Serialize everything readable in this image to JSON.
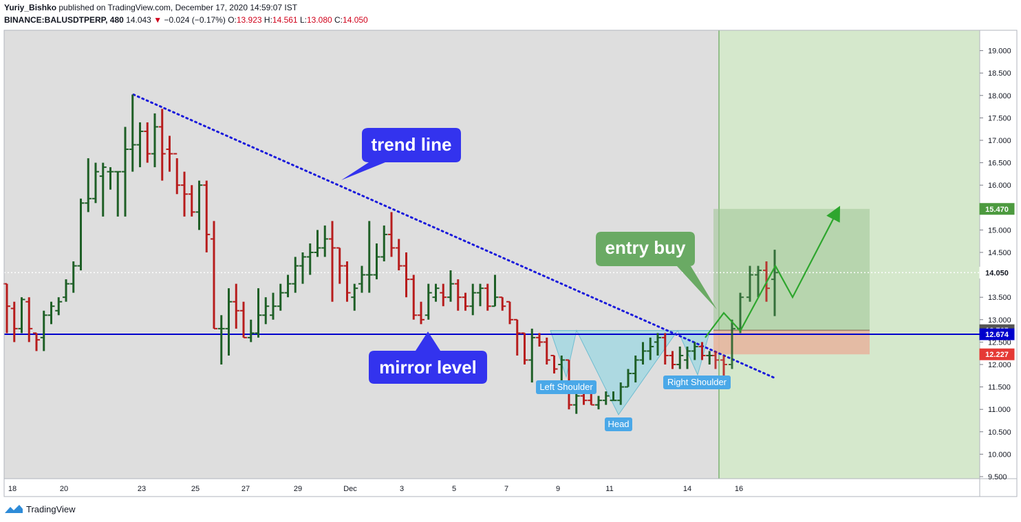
{
  "header": {
    "author": "Yuriy_Bishko",
    "published_text": "published on TradingView.com, December 17, 2020 14:59:07 IST",
    "symbol": "BINANCE:BALUSDTPERP, 480",
    "last": "14.043",
    "change_arrow": "▼",
    "change": "−0.024 (−0.17%)",
    "o_label": "O:",
    "o": "13.923",
    "h_label": "H:",
    "h": "14.561",
    "l_label": "L:",
    "l": "13.080",
    "c_label": "C:",
    "c": "14.050"
  },
  "footer": {
    "brand": "TradingView",
    "logo_icon": "tradingview-logo-icon"
  },
  "annotations": {
    "trend_line": "trend line",
    "entry_buy": "entry buy",
    "mirror_level": "mirror level",
    "left_shoulder": "Left Shoulder",
    "head": "Head",
    "right_shoulder": "Right Shoulder"
  },
  "colors": {
    "up": "#1e5f26",
    "down": "#b71c1c",
    "callout_blue": "#3333ee",
    "callout_green": "#6aaa64",
    "pattern_fill": "#a5d8e2",
    "mirror_line": "#0000cc",
    "trend_line": "#1a1adb",
    "target_zone": "#b7d4a8",
    "stop_zone": "#e6b6a0",
    "future_bg": "#d5e8cc",
    "chart_bg": "#dedede"
  },
  "chart_data": {
    "type": "ohlc-bar",
    "interval": "480",
    "ylim": [
      9.3,
      19.3
    ],
    "yticks": [
      "19.000",
      "18.500",
      "18.000",
      "17.500",
      "17.000",
      "16.500",
      "16.000",
      "15.500",
      "15.000",
      "14.500",
      "14.000",
      "13.500",
      "13.000",
      "12.500",
      "12.000",
      "11.500",
      "11.000",
      "10.500",
      "10.000",
      "9.500"
    ],
    "xtick_labels": [
      "18",
      "20",
      "23",
      "25",
      "27",
      "29",
      "Dec",
      "3",
      "5",
      "7",
      "9",
      "11",
      "14",
      "16"
    ],
    "price_labels": [
      {
        "value": 15.47,
        "text": "15.470",
        "color": "#4c9a3f"
      },
      {
        "value": 14.05,
        "text": "14.050",
        "color": "#ffffff"
      },
      {
        "value": 12.765,
        "text": "12.765",
        "color": "#555555"
      },
      {
        "value": 12.674,
        "text": "12.674",
        "color": "#0000cc"
      },
      {
        "value": 12.227,
        "text": "12.227",
        "color": "#e53935"
      }
    ],
    "mirror_level": 12.674,
    "current_price": 14.05,
    "trend_line": {
      "start": {
        "bar": 0,
        "price": 18.02
      },
      "end": {
        "bar": 1,
        "price": 11.7
      }
    },
    "zones": {
      "target": [
        12.765,
        15.47
      ],
      "stop": [
        12.227,
        12.765
      ]
    },
    "bars": [
      [
        13.8,
        13.8,
        12.7,
        13.3
      ],
      [
        13.25,
        13.4,
        12.5,
        12.8
      ],
      [
        12.8,
        13.5,
        12.7,
        13.45
      ],
      [
        13.4,
        13.5,
        12.5,
        12.8
      ],
      [
        12.7,
        12.7,
        12.3,
        12.55
      ],
      [
        12.6,
        13.2,
        12.3,
        13.1
      ],
      [
        13.1,
        13.4,
        12.9,
        13.3
      ],
      [
        13.2,
        13.5,
        13.1,
        13.4
      ],
      [
        13.5,
        13.9,
        13.4,
        13.8
      ],
      [
        13.8,
        14.3,
        13.6,
        14.2
      ],
      [
        14.2,
        15.7,
        14.1,
        15.6
      ],
      [
        15.6,
        16.6,
        15.4,
        15.7
      ],
      [
        15.7,
        16.5,
        15.6,
        16.3
      ],
      [
        16.2,
        16.5,
        15.3,
        16.4
      ],
      [
        16.3,
        16.4,
        15.9,
        16.3
      ],
      [
        16.3,
        16.3,
        15.3,
        16.3
      ],
      [
        16.3,
        17.3,
        15.3,
        16.8
      ],
      [
        16.8,
        18.02,
        16.3,
        16.9
      ],
      [
        16.9,
        17.4,
        16.4,
        17.2
      ],
      [
        17.2,
        17.4,
        16.5,
        16.7
      ],
      [
        16.7,
        17.6,
        16.4,
        17.3
      ],
      [
        17.3,
        17.7,
        16.1,
        16.7
      ],
      [
        16.8,
        17.1,
        16.3,
        16.7
      ],
      [
        16.7,
        16.6,
        15.8,
        16.0
      ],
      [
        16.0,
        16.3,
        15.3,
        15.8
      ],
      [
        15.8,
        16.0,
        15.3,
        15.4
      ],
      [
        15.4,
        16.1,
        15.0,
        16.0
      ],
      [
        16.0,
        16.1,
        14.5,
        14.9
      ],
      [
        14.8,
        15.2,
        12.8,
        12.8
      ],
      [
        12.8,
        13.1,
        12.0,
        12.8
      ],
      [
        12.8,
        13.7,
        12.2,
        13.4
      ],
      [
        13.4,
        13.8,
        12.8,
        13.2
      ],
      [
        13.2,
        13.4,
        12.6,
        12.6
      ],
      [
        12.6,
        13.0,
        12.5,
        12.7
      ],
      [
        12.7,
        13.7,
        12.6,
        13.1
      ],
      [
        13.1,
        13.5,
        12.9,
        13.3
      ],
      [
        13.1,
        13.6,
        13.0,
        13.3
      ],
      [
        13.3,
        13.8,
        13.2,
        13.6
      ],
      [
        13.6,
        14.0,
        13.5,
        13.8
      ],
      [
        13.8,
        14.4,
        13.6,
        14.2
      ],
      [
        14.2,
        14.5,
        13.8,
        14.4
      ],
      [
        14.4,
        14.7,
        14.0,
        14.5
      ],
      [
        14.5,
        15.0,
        14.4,
        14.6
      ],
      [
        14.6,
        15.1,
        14.4,
        14.8
      ],
      [
        14.8,
        15.2,
        13.4,
        14.6
      ],
      [
        14.6,
        14.6,
        13.8,
        14.2
      ],
      [
        14.2,
        14.3,
        13.4,
        13.6
      ],
      [
        13.5,
        13.8,
        13.2,
        13.7
      ],
      [
        13.8,
        14.2,
        13.6,
        14.0
      ],
      [
        14.0,
        15.2,
        13.6,
        14.0
      ],
      [
        14.0,
        14.7,
        13.9,
        14.4
      ],
      [
        14.4,
        15.1,
        14.3,
        14.9
      ],
      [
        14.9,
        15.4,
        14.4,
        14.6
      ],
      [
        14.6,
        14.8,
        14.1,
        14.2
      ],
      [
        14.2,
        14.5,
        13.5,
        13.9
      ],
      [
        13.9,
        14.0,
        13.0,
        13.1
      ],
      [
        13.1,
        13.4,
        12.9,
        13.0
      ],
      [
        13.1,
        13.8,
        13.0,
        13.6
      ],
      [
        13.5,
        13.8,
        13.4,
        13.7
      ],
      [
        13.6,
        13.8,
        13.3,
        13.5
      ],
      [
        13.5,
        14.1,
        13.4,
        13.8
      ],
      [
        13.8,
        13.9,
        13.2,
        13.5
      ],
      [
        13.5,
        13.6,
        13.2,
        13.3
      ],
      [
        13.3,
        13.8,
        13.1,
        13.6
      ],
      [
        13.6,
        13.8,
        13.3,
        13.7
      ],
      [
        13.7,
        13.8,
        13.2,
        13.3
      ],
      [
        13.3,
        14.0,
        13.3,
        13.5
      ],
      [
        13.5,
        13.5,
        13.2,
        13.3
      ],
      [
        13.4,
        13.4,
        12.9,
        13.0
      ],
      [
        13.0,
        13.0,
        12.2,
        12.7
      ],
      [
        12.7,
        12.7,
        12.0,
        12.1
      ],
      [
        12.1,
        12.8,
        11.6,
        12.6
      ],
      [
        12.6,
        12.7,
        12.4,
        12.5
      ],
      [
        12.5,
        12.6,
        12.0,
        12.1
      ],
      [
        12.2,
        12.2,
        11.8,
        11.9
      ],
      [
        12.0,
        12.2,
        11.6,
        12.1
      ],
      [
        12.1,
        12.1,
        11.0,
        11.1
      ],
      [
        11.1,
        11.4,
        10.9,
        11.3
      ],
      [
        11.3,
        11.4,
        11.1,
        11.2
      ],
      [
        11.2,
        11.4,
        11.1,
        11.1
      ],
      [
        11.1,
        11.3,
        11.0,
        11.2
      ],
      [
        11.2,
        11.4,
        11.1,
        11.3
      ],
      [
        11.2,
        11.4,
        11.2,
        11.2
      ],
      [
        11.2,
        11.6,
        11.1,
        11.5
      ],
      [
        11.5,
        11.9,
        11.5,
        11.8
      ],
      [
        11.8,
        12.2,
        11.6,
        12.1
      ],
      [
        12.1,
        12.5,
        12.0,
        12.3
      ],
      [
        12.3,
        12.6,
        12.1,
        12.4
      ],
      [
        12.5,
        12.7,
        12.2,
        12.6
      ],
      [
        12.6,
        12.7,
        12.0,
        12.2
      ],
      [
        12.2,
        12.3,
        11.9,
        12.0
      ],
      [
        12.0,
        12.4,
        11.9,
        12.2
      ],
      [
        12.1,
        12.4,
        11.9,
        12.3
      ],
      [
        12.3,
        12.5,
        12.1,
        12.4
      ],
      [
        12.4,
        12.5,
        12.1,
        12.2
      ],
      [
        12.2,
        12.3,
        12.0,
        12.2
      ]
    ],
    "future_bars": [
      [
        12.2,
        12.3,
        11.9,
        12.1
      ],
      [
        12.1,
        12.2,
        11.7,
        12.0
      ],
      [
        12.0,
        13.0,
        11.9,
        12.8
      ],
      [
        12.8,
        13.6,
        12.7,
        13.5
      ],
      [
        13.5,
        14.2,
        13.4,
        14.0
      ],
      [
        14.0,
        14.2,
        13.5,
        14.1
      ],
      [
        14.1,
        14.3,
        13.4,
        13.7
      ],
      [
        13.9,
        14.56,
        13.08,
        14.05
      ]
    ],
    "projection": [
      {
        "step": 0,
        "price": 12.6
      },
      {
        "step": 1,
        "price": 13.15
      },
      {
        "step": 2,
        "price": 12.75
      },
      {
        "step": 3,
        "price": 14.2
      },
      {
        "step": 4,
        "price": 13.5
      },
      {
        "step": 5,
        "price": 15.45
      }
    ]
  }
}
